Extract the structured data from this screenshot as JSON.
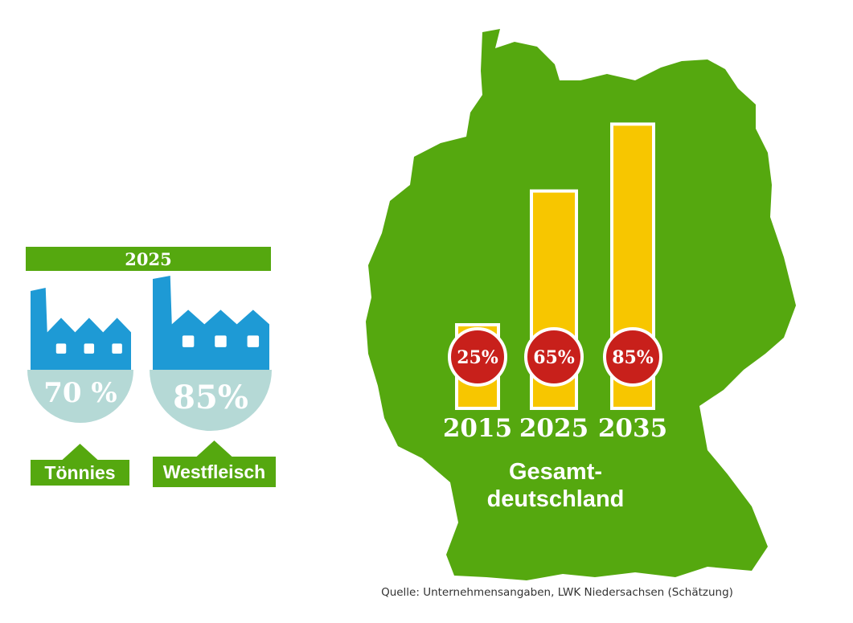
{
  "colors": {
    "green": "#55a80f",
    "yellow": "#f7c600",
    "red": "#c8201b",
    "blue": "#1e9ad5",
    "pale": "#b5d9d6",
    "white": "#ffffff"
  },
  "source": "Quelle: Unternehmensangaben, LWK Niedersachsen (Schätzung)",
  "chart_data": [
    {
      "type": "bar",
      "title": "Gesamt-deutschland",
      "title_lines": [
        "Gesamt-",
        "deutschland"
      ],
      "categories": [
        "2015",
        "2025",
        "2035"
      ],
      "values": [
        25,
        65,
        85
      ],
      "value_labels": [
        "25%",
        "65%",
        "85%"
      ],
      "ylim": [
        0,
        100
      ],
      "grid": false
    },
    {
      "type": "bar",
      "title": "2025",
      "categories": [
        "Tönnies",
        "Westfleisch"
      ],
      "values": [
        70,
        85
      ],
      "value_labels": [
        "70 %",
        "85%"
      ],
      "icon": "factory-icon"
    }
  ]
}
